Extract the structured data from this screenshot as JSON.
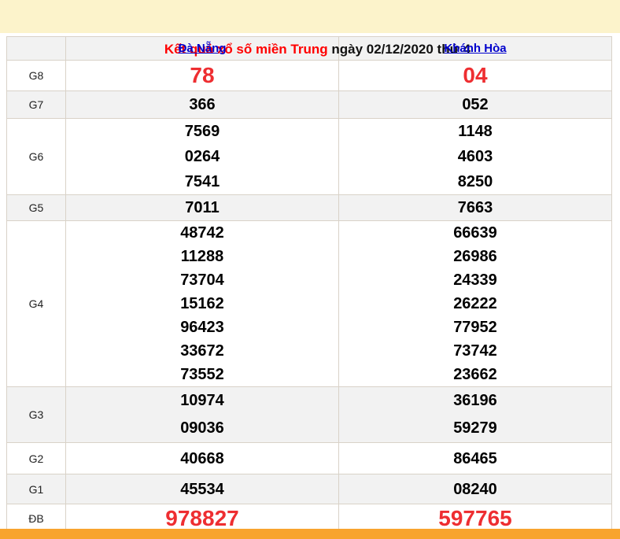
{
  "title": {
    "highlight": "Kết quả xổ số miền Trung",
    "rest": " ngày 02/12/2020 thứ 4"
  },
  "table": {
    "columns": [
      "Đà Nẵng",
      "Khánh Hòa"
    ],
    "rows": [
      {
        "label": "G8",
        "highlight": true,
        "values": [
          [
            "78"
          ],
          [
            "04"
          ]
        ]
      },
      {
        "label": "G7",
        "highlight": false,
        "values": [
          [
            "366"
          ],
          [
            "052"
          ]
        ]
      },
      {
        "label": "G6",
        "highlight": false,
        "values": [
          [
            "7569",
            "0264",
            "7541"
          ],
          [
            "1148",
            "4603",
            "8250"
          ]
        ]
      },
      {
        "label": "G5",
        "highlight": false,
        "values": [
          [
            "7011"
          ],
          [
            "7663"
          ]
        ]
      },
      {
        "label": "G4",
        "highlight": false,
        "values": [
          [
            "48742",
            "11288",
            "73704",
            "15162",
            "96423",
            "33672",
            "73552"
          ],
          [
            "66639",
            "26986",
            "24339",
            "26222",
            "77952",
            "73742",
            "23662"
          ]
        ]
      },
      {
        "label": "G3",
        "highlight": false,
        "values": [
          [
            "10974",
            "09036"
          ],
          [
            "36196",
            "59279"
          ]
        ]
      },
      {
        "label": "G2",
        "highlight": false,
        "values": [
          [
            "40668"
          ],
          [
            "86465"
          ]
        ]
      },
      {
        "label": "G1",
        "highlight": false,
        "values": [
          [
            "45534"
          ],
          [
            "08240"
          ]
        ]
      },
      {
        "label": "ĐB",
        "highlight": true,
        "values": [
          [
            "978827"
          ],
          [
            "597765"
          ]
        ]
      }
    ]
  },
  "colors": {
    "title_bg": "#fcf3cb",
    "title_red": "#ff0000",
    "value_red": "#ee2e31",
    "link_blue": "#0000cc",
    "row_stripe": "#f2f2f2",
    "border": "#d9d2c8",
    "footer_orange": "#f8a42e"
  }
}
